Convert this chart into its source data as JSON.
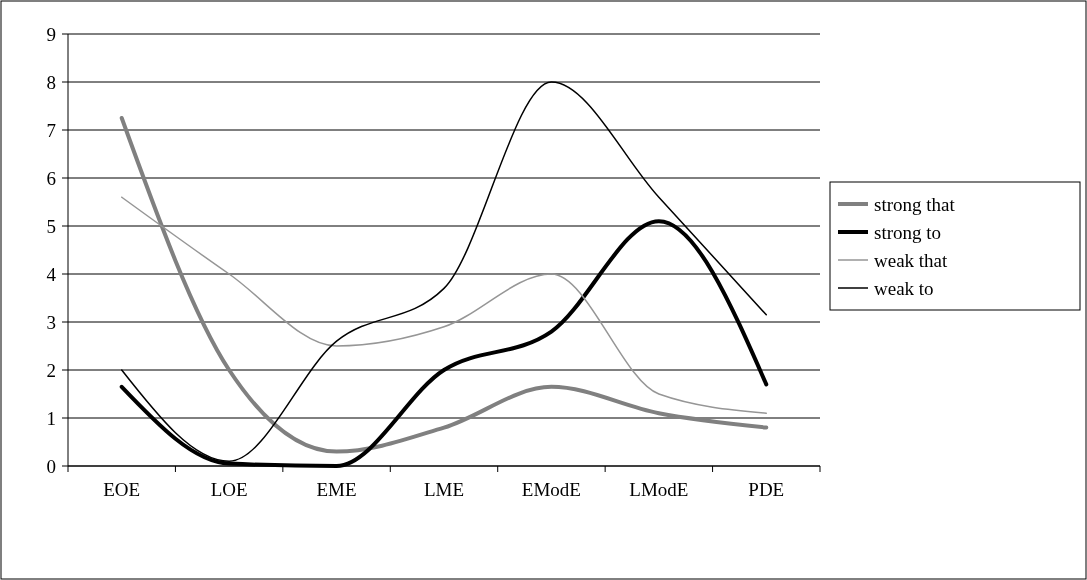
{
  "chart_data": {
    "type": "line",
    "categories": [
      "EOE",
      "LOE",
      "EME",
      "LME",
      "EModE",
      "LModE",
      "PDE"
    ],
    "series": [
      {
        "name": "strong that",
        "color": "#808080",
        "values": [
          7.25,
          2.0,
          0.3,
          0.8,
          1.65,
          1.1,
          0.8
        ]
      },
      {
        "name": "strong to",
        "color": "#000000",
        "values": [
          1.65,
          0.05,
          0,
          2.0,
          2.8,
          5.1,
          1.7
        ]
      },
      {
        "name": "weak that",
        "color": "#969696",
        "values": [
          5.6,
          4.0,
          2.5,
          2.9,
          4.0,
          1.5,
          1.1
        ]
      },
      {
        "name": "weak to",
        "color": "#000000",
        "values": [
          2.0,
          0.1,
          2.6,
          3.7,
          8.0,
          5.6,
          3.15
        ]
      }
    ],
    "ylim": [
      0,
      9
    ],
    "yticks": [
      0,
      1,
      2,
      3,
      4,
      5,
      6,
      7,
      8,
      9
    ],
    "grid": "y",
    "legend": "right",
    "marker": "none",
    "line_style": "solid"
  }
}
